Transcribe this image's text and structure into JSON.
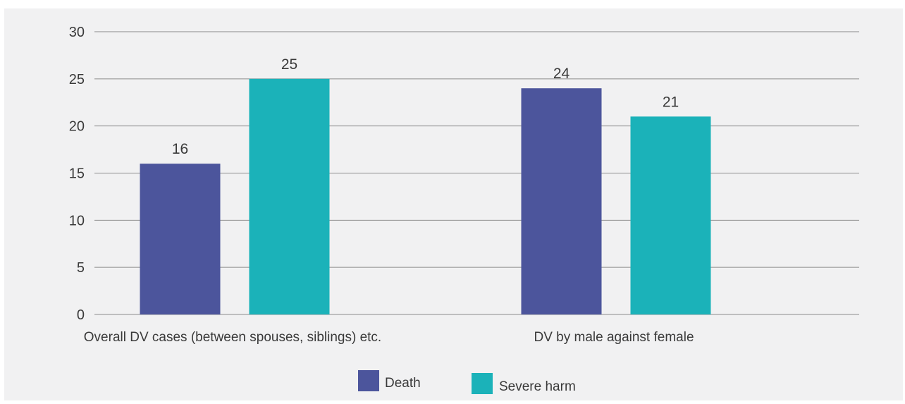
{
  "chart_data": {
    "type": "bar",
    "categories": [
      "Overall DV cases (between spouses, siblings) etc.",
      "DV by male against female"
    ],
    "series": [
      {
        "name": "Death",
        "values": [
          16,
          24
        ],
        "color": "#4c559c"
      },
      {
        "name": "Severe harm",
        "values": [
          25,
          21
        ],
        "color": "#1bb2b9"
      }
    ],
    "y_ticks": [
      "0",
      "5",
      "10",
      "15",
      "20",
      "25",
      "30"
    ],
    "ylim": [
      0,
      30
    ],
    "grid": true,
    "legend_position": "bottom-center",
    "data_labels": true
  }
}
